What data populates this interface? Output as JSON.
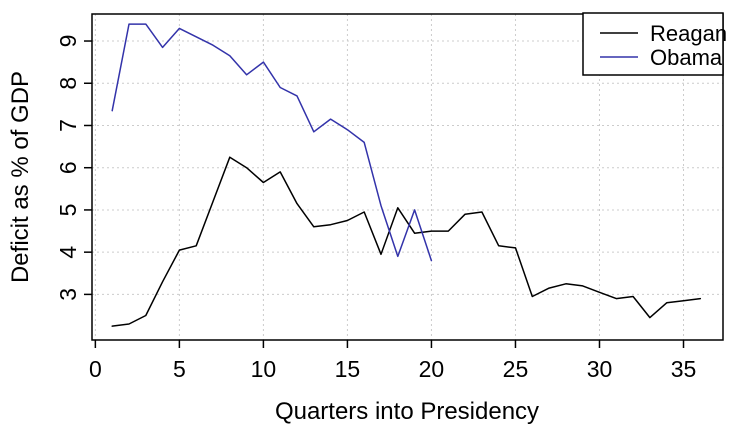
{
  "chart_data": {
    "type": "line",
    "title": "",
    "xlabel": "Quarters into Presidency",
    "ylabel": "Deficit as % of GDP",
    "xticks": [
      0,
      5,
      10,
      15,
      20,
      25,
      30,
      35
    ],
    "yticks": [
      3,
      4,
      5,
      6,
      7,
      8,
      9
    ],
    "xlim": [
      -0.2,
      37.35
    ],
    "ylim": [
      1.92,
      9.64
    ],
    "grid": "dotted",
    "legend_position": "topright",
    "series": [
      {
        "name": "Reagan",
        "color": "#000000",
        "x": [
          1,
          2,
          3,
          4,
          5,
          6,
          7,
          8,
          9,
          10,
          11,
          12,
          13,
          14,
          15,
          16,
          17,
          18,
          19,
          20,
          21,
          22,
          23,
          24,
          25,
          26,
          27,
          28,
          29,
          30,
          31,
          32,
          33,
          34,
          35,
          36
        ],
        "y": [
          2.25,
          2.3,
          2.5,
          3.3,
          4.05,
          4.15,
          5.2,
          6.25,
          6.0,
          5.65,
          5.9,
          5.15,
          4.6,
          4.65,
          4.75,
          4.95,
          3.95,
          5.05,
          4.45,
          4.5,
          4.5,
          4.9,
          4.95,
          4.15,
          4.1,
          2.95,
          3.15,
          3.25,
          3.2,
          3.05,
          2.9,
          2.95,
          2.45,
          2.8,
          2.85,
          2.9
        ]
      },
      {
        "name": "Obama",
        "color": "#3333aa",
        "x": [
          1,
          2,
          3,
          4,
          5,
          6,
          7,
          8,
          9,
          10,
          11,
          12,
          13,
          14,
          15,
          16,
          17,
          18,
          19,
          20
        ],
        "y": [
          7.35,
          9.4,
          9.4,
          8.85,
          9.3,
          9.1,
          8.9,
          8.65,
          8.2,
          8.5,
          7.9,
          7.7,
          6.85,
          7.15,
          6.9,
          6.6,
          5.1,
          3.9,
          5.0,
          3.8
        ]
      }
    ]
  },
  "colors": {
    "background": "#ffffff",
    "grid": "#cccccc",
    "axis": "#000000"
  }
}
